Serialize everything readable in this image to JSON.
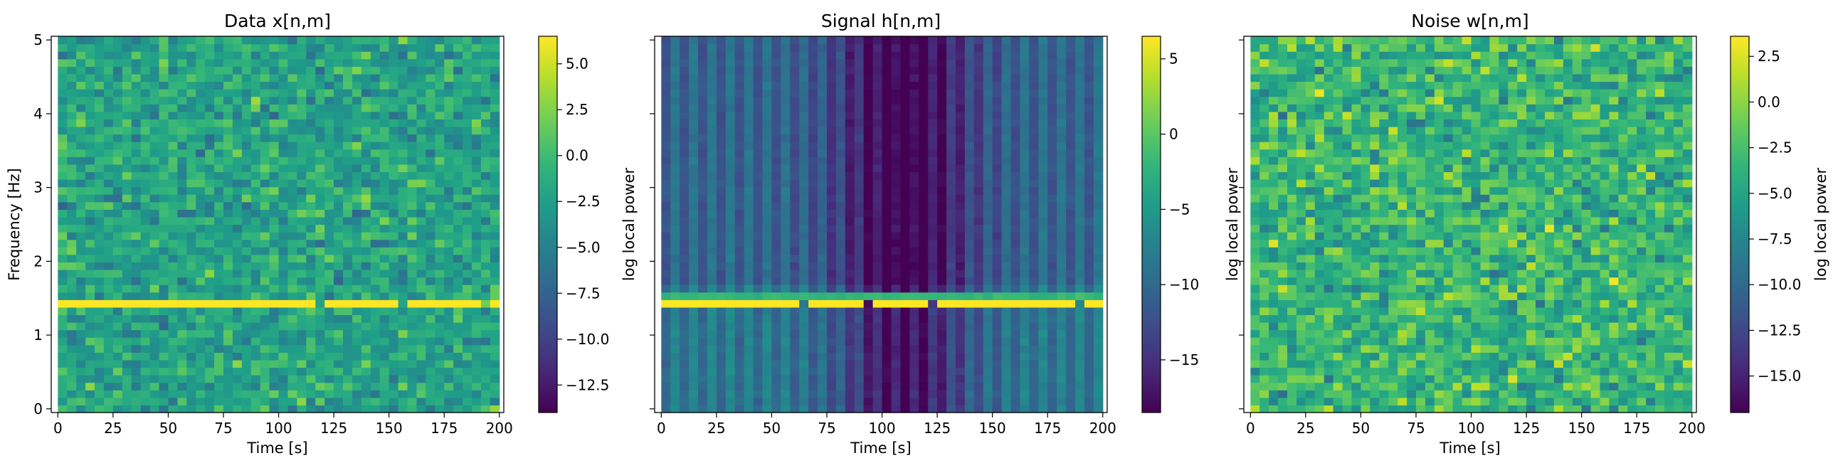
{
  "figure": {
    "colormap": "viridis"
  },
  "chart_data": [
    {
      "type": "heatmap",
      "title": "Data  x[n,m]",
      "xlabel": "Time [s]",
      "ylabel": "Frequency [Hz]",
      "xlim": [
        -3,
        202
      ],
      "ylim": [
        -0.05,
        5.05
      ],
      "xticks": [
        0,
        25,
        50,
        75,
        100,
        125,
        150,
        175,
        200
      ],
      "xtick_labels": [
        "0",
        "25",
        "50",
        "75",
        "100",
        "125",
        "150",
        "175",
        "200"
      ],
      "yticks": [
        0,
        1,
        2,
        3,
        4,
        5
      ],
      "ytick_labels": [
        "0",
        "1",
        "2",
        "3",
        "4",
        "5"
      ],
      "show_ytick_labels": true,
      "grid": {
        "n_time_bins": 48,
        "n_freq_bins": 50
      },
      "model": {
        "kind": "noisy",
        "base": -2.2,
        "spread": 2.6,
        "line_freq_hz": 1.47,
        "line_value": 6.5,
        "line_gaps": [
          28,
          37,
          46
        ]
      },
      "colorbar": {
        "label": "log local power",
        "vmin": -14,
        "vmax": 6.5,
        "ticks": [
          5.0,
          2.5,
          0.0,
          -2.5,
          -5.0,
          -7.5,
          -10.0,
          -12.5
        ],
        "tick_labels": [
          "5.0",
          "2.5",
          "0.0",
          "−2.5",
          "−5.0",
          "−7.5",
          "−10.0",
          "−12.5"
        ]
      }
    },
    {
      "type": "heatmap",
      "title": "Signal  h[n,m]",
      "xlabel": "Time [s]",
      "ylabel": "",
      "xlim": [
        -3,
        202
      ],
      "ylim": [
        -0.05,
        5.05
      ],
      "xticks": [
        0,
        25,
        50,
        75,
        100,
        125,
        150,
        175,
        200
      ],
      "xtick_labels": [
        "0",
        "25",
        "50",
        "75",
        "100",
        "125",
        "150",
        "175",
        "200"
      ],
      "yticks": [
        0,
        1,
        2,
        3,
        4,
        5
      ],
      "ytick_labels": [],
      "show_ytick_labels": false,
      "grid": {
        "n_time_bins": 48,
        "n_freq_bins": 50
      },
      "model": {
        "kind": "signal",
        "base": -8,
        "center_time_s": 110,
        "center_depth": 9,
        "line_freq_hz": 1.47,
        "line_value": 6.5,
        "line_gaps": [
          15,
          22,
          29,
          45
        ]
      },
      "colorbar": {
        "label": "log local power",
        "vmin": -18.5,
        "vmax": 6.5,
        "ticks": [
          5,
          0,
          -5,
          -10,
          -15
        ],
        "tick_labels": [
          "5",
          "0",
          "−5",
          "−10",
          "−15"
        ]
      }
    },
    {
      "type": "heatmap",
      "title": "Noise  w[n,m]",
      "xlabel": "Time [s]",
      "ylabel": "",
      "xlim": [
        -3,
        202
      ],
      "ylim": [
        -0.05,
        5.05
      ],
      "xticks": [
        0,
        25,
        50,
        75,
        100,
        125,
        150,
        175,
        200
      ],
      "xtick_labels": [
        "0",
        "25",
        "50",
        "75",
        "100",
        "125",
        "150",
        "175",
        "200"
      ],
      "yticks": [
        0,
        1,
        2,
        3,
        4,
        5
      ],
      "ytick_labels": [],
      "show_ytick_labels": false,
      "grid": {
        "n_time_bins": 48,
        "n_freq_bins": 50
      },
      "model": {
        "kind": "noise",
        "base": -3.5,
        "spread": 3.2
      },
      "colorbar": {
        "label": "log local power",
        "vmin": -17,
        "vmax": 3.6,
        "ticks": [
          2.5,
          0.0,
          -2.5,
          -5.0,
          -7.5,
          -10.0,
          -12.5,
          -15.0
        ],
        "tick_labels": [
          "2.5",
          "0.0",
          "−2.5",
          "−5.0",
          "−7.5",
          "−10.0",
          "−12.5",
          "−15.0"
        ]
      }
    }
  ]
}
